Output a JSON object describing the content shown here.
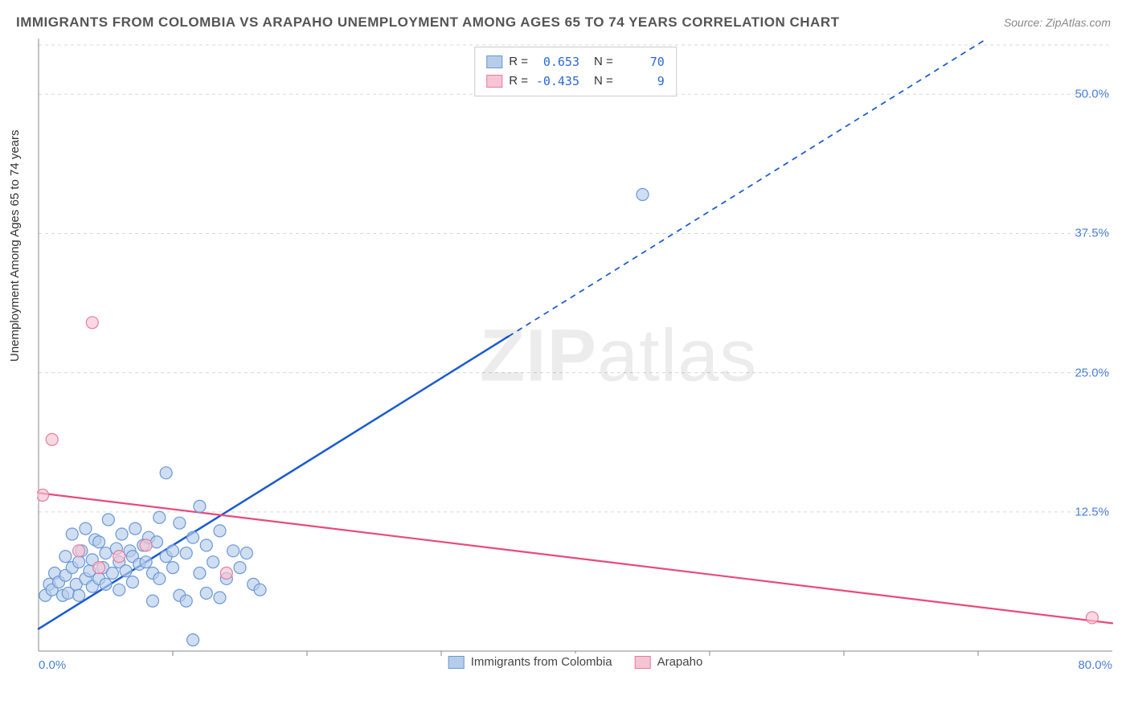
{
  "title": "IMMIGRANTS FROM COLOMBIA VS ARAPAHO UNEMPLOYMENT AMONG AGES 65 TO 74 YEARS CORRELATION CHART",
  "source": "Source: ZipAtlas.com",
  "ylabel": "Unemployment Among Ages 65 to 74 years",
  "watermark_a": "ZIP",
  "watermark_b": "atlas",
  "chart": {
    "type": "scatter",
    "xlim": [
      0,
      80
    ],
    "ylim": [
      0,
      55
    ],
    "x_ticks": [
      {
        "v": 0.0,
        "label": "0.0%"
      },
      {
        "v": 80.0,
        "label": "80.0%"
      }
    ],
    "y_ticks": [
      {
        "v": 12.5,
        "label": "12.5%"
      },
      {
        "v": 25.0,
        "label": "25.0%"
      },
      {
        "v": 37.5,
        "label": "37.5%"
      },
      {
        "v": 50.0,
        "label": "50.0%"
      }
    ],
    "x_minor_ticks": [
      10,
      20,
      30,
      40,
      50,
      60,
      70
    ],
    "grid_color": "#d8d8d8",
    "axis_color": "#888888",
    "background_color": "#ffffff",
    "marker_radius": 7.5,
    "marker_stroke_width": 1.2,
    "series": [
      {
        "name": "Immigrants from Colombia",
        "color_fill": "#b6cdea",
        "color_stroke": "#6a98d8",
        "R": "0.653",
        "N": "70",
        "trend": {
          "x1": 0,
          "y1": 2.0,
          "x2": 80,
          "y2": 62.0,
          "solid_until_x": 35,
          "color": "#1b5bd0",
          "width": 2.5
        },
        "points": [
          [
            0.5,
            5.0
          ],
          [
            0.8,
            6.0
          ],
          [
            1.0,
            5.5
          ],
          [
            1.2,
            7.0
          ],
          [
            1.5,
            6.2
          ],
          [
            1.8,
            5.0
          ],
          [
            2.0,
            6.8
          ],
          [
            2.0,
            8.5
          ],
          [
            2.2,
            5.2
          ],
          [
            2.5,
            7.5
          ],
          [
            2.5,
            10.5
          ],
          [
            2.8,
            6.0
          ],
          [
            3.0,
            8.0
          ],
          [
            3.0,
            5.0
          ],
          [
            3.2,
            9.0
          ],
          [
            3.5,
            6.5
          ],
          [
            3.5,
            11.0
          ],
          [
            3.8,
            7.2
          ],
          [
            4.0,
            8.2
          ],
          [
            4.0,
            5.8
          ],
          [
            4.2,
            10.0
          ],
          [
            4.5,
            6.5
          ],
          [
            4.5,
            9.8
          ],
          [
            4.8,
            7.5
          ],
          [
            5.0,
            8.8
          ],
          [
            5.0,
            6.0
          ],
          [
            5.2,
            11.8
          ],
          [
            5.5,
            7.0
          ],
          [
            5.8,
            9.2
          ],
          [
            6.0,
            8.0
          ],
          [
            6.0,
            5.5
          ],
          [
            6.2,
            10.5
          ],
          [
            6.5,
            7.2
          ],
          [
            6.8,
            9.0
          ],
          [
            7.0,
            8.5
          ],
          [
            7.0,
            6.2
          ],
          [
            7.2,
            11.0
          ],
          [
            7.5,
            7.8
          ],
          [
            7.8,
            9.5
          ],
          [
            8.0,
            8.0
          ],
          [
            8.2,
            10.2
          ],
          [
            8.5,
            7.0
          ],
          [
            8.8,
            9.8
          ],
          [
            9.0,
            12.0
          ],
          [
            9.0,
            6.5
          ],
          [
            9.5,
            8.5
          ],
          [
            9.5,
            16.0
          ],
          [
            10.0,
            9.0
          ],
          [
            10.0,
            7.5
          ],
          [
            10.5,
            11.5
          ],
          [
            10.5,
            5.0
          ],
          [
            11.0,
            8.8
          ],
          [
            11.5,
            10.2
          ],
          [
            12.0,
            7.0
          ],
          [
            12.0,
            13.0
          ],
          [
            12.5,
            9.5
          ],
          [
            13.0,
            8.0
          ],
          [
            13.5,
            10.8
          ],
          [
            14.0,
            6.5
          ],
          [
            14.5,
            9.0
          ],
          [
            15.0,
            7.5
          ],
          [
            15.5,
            8.8
          ],
          [
            16.0,
            6.0
          ],
          [
            16.5,
            5.5
          ],
          [
            11.0,
            4.5
          ],
          [
            12.5,
            5.2
          ],
          [
            13.5,
            4.8
          ],
          [
            8.5,
            4.5
          ],
          [
            11.5,
            1.0
          ],
          [
            45.0,
            41.0
          ]
        ]
      },
      {
        "name": "Arapaho",
        "color_fill": "#f5c5d3",
        "color_stroke": "#e77ba0",
        "R": "-0.435",
        "N": "9",
        "trend": {
          "x1": 0,
          "y1": 14.2,
          "x2": 80,
          "y2": 2.5,
          "solid_until_x": 80,
          "color": "#e84a7a",
          "width": 2.2
        },
        "points": [
          [
            0.3,
            14.0
          ],
          [
            1.0,
            19.0
          ],
          [
            4.0,
            29.5
          ],
          [
            3.0,
            9.0
          ],
          [
            4.5,
            7.5
          ],
          [
            6.0,
            8.5
          ],
          [
            8.0,
            9.5
          ],
          [
            14.0,
            7.0
          ],
          [
            78.5,
            3.0
          ]
        ]
      }
    ]
  },
  "legend_top": {
    "r_label": "R =",
    "n_label": "N ="
  }
}
